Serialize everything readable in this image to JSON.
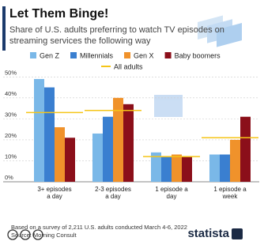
{
  "chart_data": {
    "type": "bar",
    "title": "Let Them Binge!",
    "subtitle": "Share of U.S. adults preferring to watch TV episodes on streaming services the following way",
    "categories": [
      "3+ episodes a day",
      "2-3 episodes a day",
      "1 episode a day",
      "1 episode a week"
    ],
    "series": [
      {
        "name": "Gen Z",
        "color": "#7ab8e8",
        "values": [
          49,
          23,
          14,
          13
        ]
      },
      {
        "name": "Millennials",
        "color": "#3a7fd0",
        "values": [
          45,
          31,
          12,
          13
        ]
      },
      {
        "name": "Gen X",
        "color": "#f0922b",
        "values": [
          26,
          40,
          13,
          20
        ]
      },
      {
        "name": "Baby boomers",
        "color": "#8b0f1a",
        "values": [
          21,
          37,
          12,
          31
        ]
      }
    ],
    "reference": {
      "name": "All adults",
      "color": "#f5c518",
      "values": [
        33,
        34,
        12,
        21
      ]
    },
    "ylim": [
      0,
      52
    ],
    "yticks": [
      {
        "value": 0,
        "label": "0%"
      },
      {
        "value": 10,
        "label": "10%"
      },
      {
        "value": 20,
        "label": "20%"
      },
      {
        "value": 30,
        "label": "30%"
      },
      {
        "value": 40,
        "label": "40%"
      },
      {
        "value": 50,
        "label": "50%"
      }
    ],
    "grid": true,
    "note": "Based on a survey of 2,211 U.S. adults conducted March 4-6, 2022",
    "source": "Source: Morning Consult",
    "brand": "statista"
  }
}
